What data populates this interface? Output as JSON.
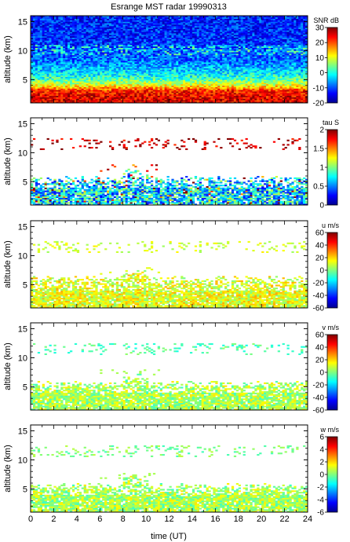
{
  "figure_title": "Esrange MST radar 19990313",
  "x_axis_label": "time (UT)",
  "chart_data": [
    {
      "type": "heatmap",
      "id": "snr",
      "ylabel": "altitude (km)",
      "xlim": [
        0,
        24
      ],
      "ylim": [
        1,
        16
      ],
      "yticks": [
        5,
        10,
        15
      ],
      "colorbar_title": "SNR dB",
      "colorbar_range": [
        -20,
        30
      ],
      "colorbar_ticks": [
        -20,
        -10,
        0,
        10,
        20,
        30
      ],
      "description_values": {
        "altitude_profile_km": [
          1,
          2,
          3,
          4,
          5,
          6,
          8,
          10,
          12,
          14,
          16
        ],
        "typical_snr_db": [
          25,
          25,
          22,
          10,
          2,
          -2,
          -8,
          -10,
          -12,
          -12,
          -12
        ]
      }
    },
    {
      "type": "heatmap",
      "id": "tau",
      "ylabel": "altitude (km)",
      "xlim": [
        0,
        24
      ],
      "ylim": [
        1,
        16
      ],
      "yticks": [
        5,
        10,
        15
      ],
      "colorbar_title": "tau S",
      "colorbar_range": [
        0,
        2
      ],
      "colorbar_ticks": [
        0,
        0.5,
        1,
        1.5,
        2
      ],
      "description_values": {
        "dense_layer_km": [
          1,
          6
        ],
        "typical_tau_s": 0.7,
        "sparse_layer_km": [
          10.5,
          12.3
        ],
        "sparse_layer_tau_s": 1.9
      }
    },
    {
      "type": "heatmap",
      "id": "u",
      "ylabel": "altitude (km)",
      "xlim": [
        0,
        24
      ],
      "ylim": [
        1,
        16
      ],
      "yticks": [
        5,
        10,
        15
      ],
      "colorbar_title": "u m/s",
      "colorbar_range": [
        -60,
        60
      ],
      "colorbar_ticks": [
        -60,
        -40,
        -20,
        0,
        20,
        40,
        60
      ],
      "description_values": {
        "dense_layer_km": [
          1,
          6.5
        ],
        "typical_u_ms": 12,
        "sparse_layer_km": [
          10.5,
          12.3
        ],
        "sparse_layer_u_ms": 10
      }
    },
    {
      "type": "heatmap",
      "id": "v",
      "ylabel": "altitude (km)",
      "xlim": [
        0,
        24
      ],
      "ylim": [
        1,
        16
      ],
      "yticks": [
        5,
        10,
        15
      ],
      "colorbar_title": "v m/s",
      "colorbar_range": [
        -60,
        60
      ],
      "colorbar_ticks": [
        -60,
        -40,
        -20,
        0,
        20,
        40,
        60
      ],
      "description_values": {
        "dense_layer_km": [
          1,
          6
        ],
        "typical_v_ms": 5,
        "sparse_layer_km": [
          10.5,
          12.3
        ],
        "sparse_layer_v_ms": -5
      }
    },
    {
      "type": "heatmap",
      "id": "w",
      "ylabel": "altitude (km)",
      "xlabel": "time (UT)",
      "xlim": [
        0,
        24
      ],
      "xticks": [
        0,
        2,
        4,
        6,
        8,
        10,
        12,
        14,
        16,
        18,
        20,
        22,
        24
      ],
      "ylim": [
        1,
        16
      ],
      "yticks": [
        5,
        10,
        15
      ],
      "colorbar_title": "w m/s",
      "colorbar_range": [
        -6,
        6
      ],
      "colorbar_ticks": [
        -6,
        -4,
        -2,
        0,
        2,
        4,
        6
      ],
      "description_values": {
        "dense_layer_km": [
          1,
          6
        ],
        "typical_w_ms": 0.5,
        "sparse_layer_km": [
          10.5,
          12.3
        ],
        "sparse_layer_w_ms": 0
      }
    }
  ]
}
